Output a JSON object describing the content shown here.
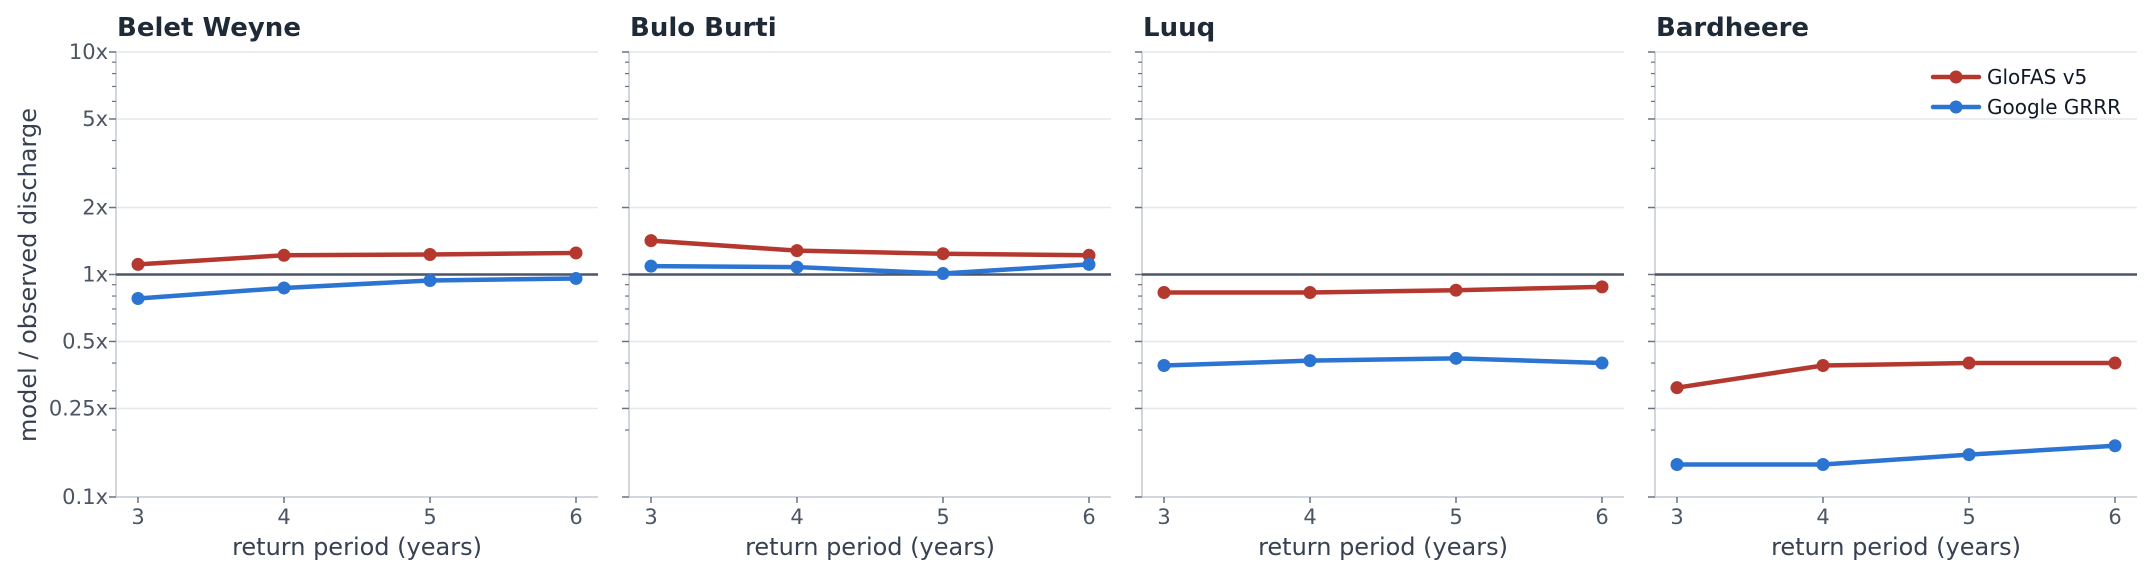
{
  "chart_data": {
    "type": "line",
    "ylabel": "model / observed discharge",
    "xlabel": "return period (years)",
    "x": [
      3,
      4,
      5,
      6
    ],
    "y_scale": "log",
    "ylim": [
      0.1,
      10
    ],
    "yticks": [
      {
        "value": 10,
        "label": "10x"
      },
      {
        "value": 5,
        "label": "5x"
      },
      {
        "value": 2,
        "label": "2x"
      },
      {
        "value": 1,
        "label": "1x"
      },
      {
        "value": 0.5,
        "label": "0.5x"
      },
      {
        "value": 0.25,
        "label": "0.25x"
      },
      {
        "value": 0.1,
        "label": "0.1x"
      }
    ],
    "reference_line": 1,
    "grid": true,
    "legend": {
      "position": "top-right",
      "panel": 3
    },
    "colors": {
      "GloFAS v5": "#b5382f",
      "Google GRRR": "#2b74d1",
      "reference": "#4a5568",
      "grid": "#e5e7eb",
      "axis": "#c4c9d2"
    },
    "panels": [
      {
        "title": "Belet Weyne",
        "series": [
          {
            "name": "GloFAS v5",
            "values": [
              1.11,
              1.22,
              1.23,
              1.25
            ]
          },
          {
            "name": "Google GRRR",
            "values": [
              0.78,
              0.87,
              0.94,
              0.96
            ]
          }
        ]
      },
      {
        "title": "Bulo Burti",
        "series": [
          {
            "name": "GloFAS v5",
            "values": [
              1.42,
              1.28,
              1.24,
              1.22
            ]
          },
          {
            "name": "Google GRRR",
            "values": [
              1.09,
              1.08,
              1.01,
              1.11
            ]
          }
        ]
      },
      {
        "title": "Luuq",
        "series": [
          {
            "name": "GloFAS v5",
            "values": [
              0.83,
              0.83,
              0.85,
              0.88
            ]
          },
          {
            "name": "Google GRRR",
            "values": [
              0.39,
              0.41,
              0.42,
              0.4
            ]
          }
        ]
      },
      {
        "title": "Bardheere",
        "series": [
          {
            "name": "GloFAS v5",
            "values": [
              0.31,
              0.39,
              0.4,
              0.4
            ]
          },
          {
            "name": "Google GRRR",
            "values": [
              0.14,
              0.14,
              0.155,
              0.17
            ]
          }
        ]
      }
    ]
  }
}
